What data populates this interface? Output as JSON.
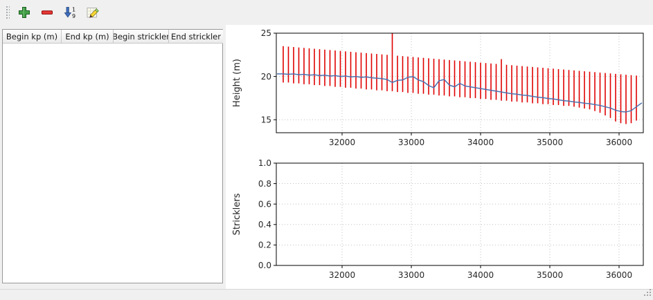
{
  "toolbar": {
    "buttons": [
      {
        "id": "add-row",
        "icon": "plus-icon"
      },
      {
        "id": "remove-row",
        "icon": "minus-icon"
      },
      {
        "id": "sort-rows",
        "icon": "sort-numeric-icon"
      },
      {
        "id": "edit-stricklers",
        "icon": "edit-icon"
      }
    ]
  },
  "table": {
    "columns": [
      "Begin kp (m)",
      "End kp (m)",
      "Begin strickler",
      "End strickler"
    ],
    "rows": []
  },
  "status_bar": {
    "text": ""
  },
  "chart_data": [
    {
      "type": "line",
      "title": "",
      "ylabel": "Height (m)",
      "xlabel": "",
      "xlim": [
        31050,
        36350
      ],
      "ylim": [
        13.5,
        25
      ],
      "xticks": [
        32000,
        33000,
        34000,
        35000,
        36000
      ],
      "xtick_labels": [
        "32000",
        "33000",
        "34000",
        "35000",
        "36000"
      ],
      "yticks": [
        15,
        20,
        25
      ],
      "ytick_labels": [
        "15",
        "20",
        "25"
      ],
      "grid": true,
      "bars": {
        "color": "#e00000",
        "x": [
          31150,
          31225,
          31300,
          31375,
          31450,
          31525,
          31600,
          31675,
          31750,
          31825,
          31900,
          31975,
          32050,
          32125,
          32200,
          32275,
          32350,
          32425,
          32500,
          32575,
          32650,
          32725,
          32800,
          32875,
          32950,
          33025,
          33100,
          33175,
          33250,
          33325,
          33400,
          33475,
          33550,
          33625,
          33700,
          33775,
          33850,
          33925,
          34000,
          34075,
          34150,
          34225,
          34300,
          34375,
          34450,
          34525,
          34600,
          34675,
          34750,
          34825,
          34900,
          34975,
          35050,
          35125,
          35200,
          35275,
          35350,
          35425,
          35500,
          35575,
          35650,
          35725,
          35800,
          35875,
          35950,
          36025,
          36100,
          36175,
          36250
        ],
        "ymax": [
          23.5,
          23.45,
          23.4,
          23.35,
          23.3,
          23.25,
          23.2,
          23.15,
          23.1,
          23.05,
          23.0,
          22.95,
          22.9,
          22.85,
          22.8,
          22.75,
          22.7,
          22.65,
          22.6,
          22.55,
          22.5,
          25.0,
          22.4,
          22.35,
          22.3,
          22.25,
          22.2,
          22.15,
          22.1,
          22.05,
          22.0,
          21.95,
          21.9,
          21.85,
          21.8,
          21.75,
          21.7,
          21.65,
          21.6,
          21.55,
          21.5,
          21.45,
          22.0,
          21.35,
          21.3,
          21.25,
          21.2,
          21.15,
          21.1,
          21.05,
          21.0,
          20.95,
          20.9,
          20.85,
          20.8,
          20.75,
          20.7,
          20.65,
          20.6,
          20.55,
          20.5,
          20.45,
          20.4,
          20.35,
          20.3,
          20.25,
          20.2,
          20.15,
          20.1
        ],
        "ymin": [
          19.3,
          19.3,
          19.2,
          19.2,
          19.1,
          19.1,
          19.0,
          19.0,
          18.9,
          18.9,
          18.8,
          18.8,
          18.7,
          18.7,
          18.6,
          18.6,
          18.5,
          18.5,
          18.4,
          18.4,
          18.3,
          18.3,
          18.2,
          18.2,
          18.1,
          18.1,
          18.0,
          18.0,
          17.9,
          17.9,
          17.8,
          17.8,
          17.7,
          17.7,
          17.6,
          17.6,
          17.5,
          17.5,
          17.4,
          17.4,
          17.3,
          17.3,
          17.2,
          17.2,
          17.1,
          17.1,
          17.0,
          17.0,
          16.9,
          16.9,
          16.8,
          16.8,
          16.7,
          16.7,
          16.6,
          16.6,
          16.5,
          16.4,
          16.3,
          16.2,
          16.0,
          15.8,
          15.5,
          15.2,
          14.8,
          14.6,
          14.5,
          14.6,
          14.9
        ]
      },
      "line": {
        "color": "#4c72b0",
        "x": [
          31060,
          31150,
          31225,
          31300,
          31375,
          31450,
          31525,
          31600,
          31675,
          31750,
          31825,
          31900,
          31975,
          32050,
          32125,
          32200,
          32275,
          32350,
          32425,
          32500,
          32575,
          32650,
          32725,
          32800,
          32875,
          32950,
          33025,
          33100,
          33175,
          33250,
          33325,
          33400,
          33475,
          33550,
          33625,
          33700,
          33775,
          33850,
          33925,
          34000,
          34075,
          34150,
          34225,
          34300,
          34375,
          34450,
          34525,
          34600,
          34675,
          34750,
          34825,
          34900,
          34975,
          35050,
          35125,
          35200,
          35275,
          35350,
          35425,
          35500,
          35575,
          35650,
          35725,
          35800,
          35875,
          35950,
          36025,
          36100,
          36175,
          36250,
          36330
        ],
        "y": [
          20.3,
          20.3,
          20.25,
          20.3,
          20.2,
          20.25,
          20.15,
          20.2,
          20.1,
          20.15,
          20.05,
          20.1,
          20.0,
          20.05,
          19.95,
          20.0,
          19.9,
          19.95,
          19.85,
          19.8,
          19.75,
          19.65,
          19.3,
          19.55,
          19.6,
          19.9,
          20.0,
          19.6,
          19.4,
          18.95,
          18.7,
          19.5,
          19.65,
          19.0,
          18.8,
          19.2,
          18.9,
          18.8,
          18.7,
          18.6,
          18.5,
          18.4,
          18.3,
          18.2,
          18.1,
          18.0,
          17.95,
          17.85,
          17.8,
          17.7,
          17.6,
          17.55,
          17.45,
          17.4,
          17.3,
          17.2,
          17.15,
          17.05,
          17.0,
          16.9,
          16.85,
          16.75,
          16.65,
          16.5,
          16.35,
          16.1,
          15.95,
          15.9,
          16.05,
          16.5,
          16.95
        ]
      }
    },
    {
      "type": "line",
      "title": "",
      "ylabel": "Stricklers",
      "xlabel": "",
      "xlim": [
        31050,
        36350
      ],
      "ylim": [
        0,
        1
      ],
      "xticks": [
        32000,
        33000,
        34000,
        35000,
        36000
      ],
      "xtick_labels": [
        "32000",
        "33000",
        "34000",
        "35000",
        "36000"
      ],
      "yticks": [
        0,
        0.2,
        0.4,
        0.6,
        0.8,
        1.0
      ],
      "ytick_labels": [
        "0.0",
        "0.2",
        "0.4",
        "0.6",
        "0.8",
        "1.0"
      ],
      "grid": true,
      "series": []
    }
  ]
}
